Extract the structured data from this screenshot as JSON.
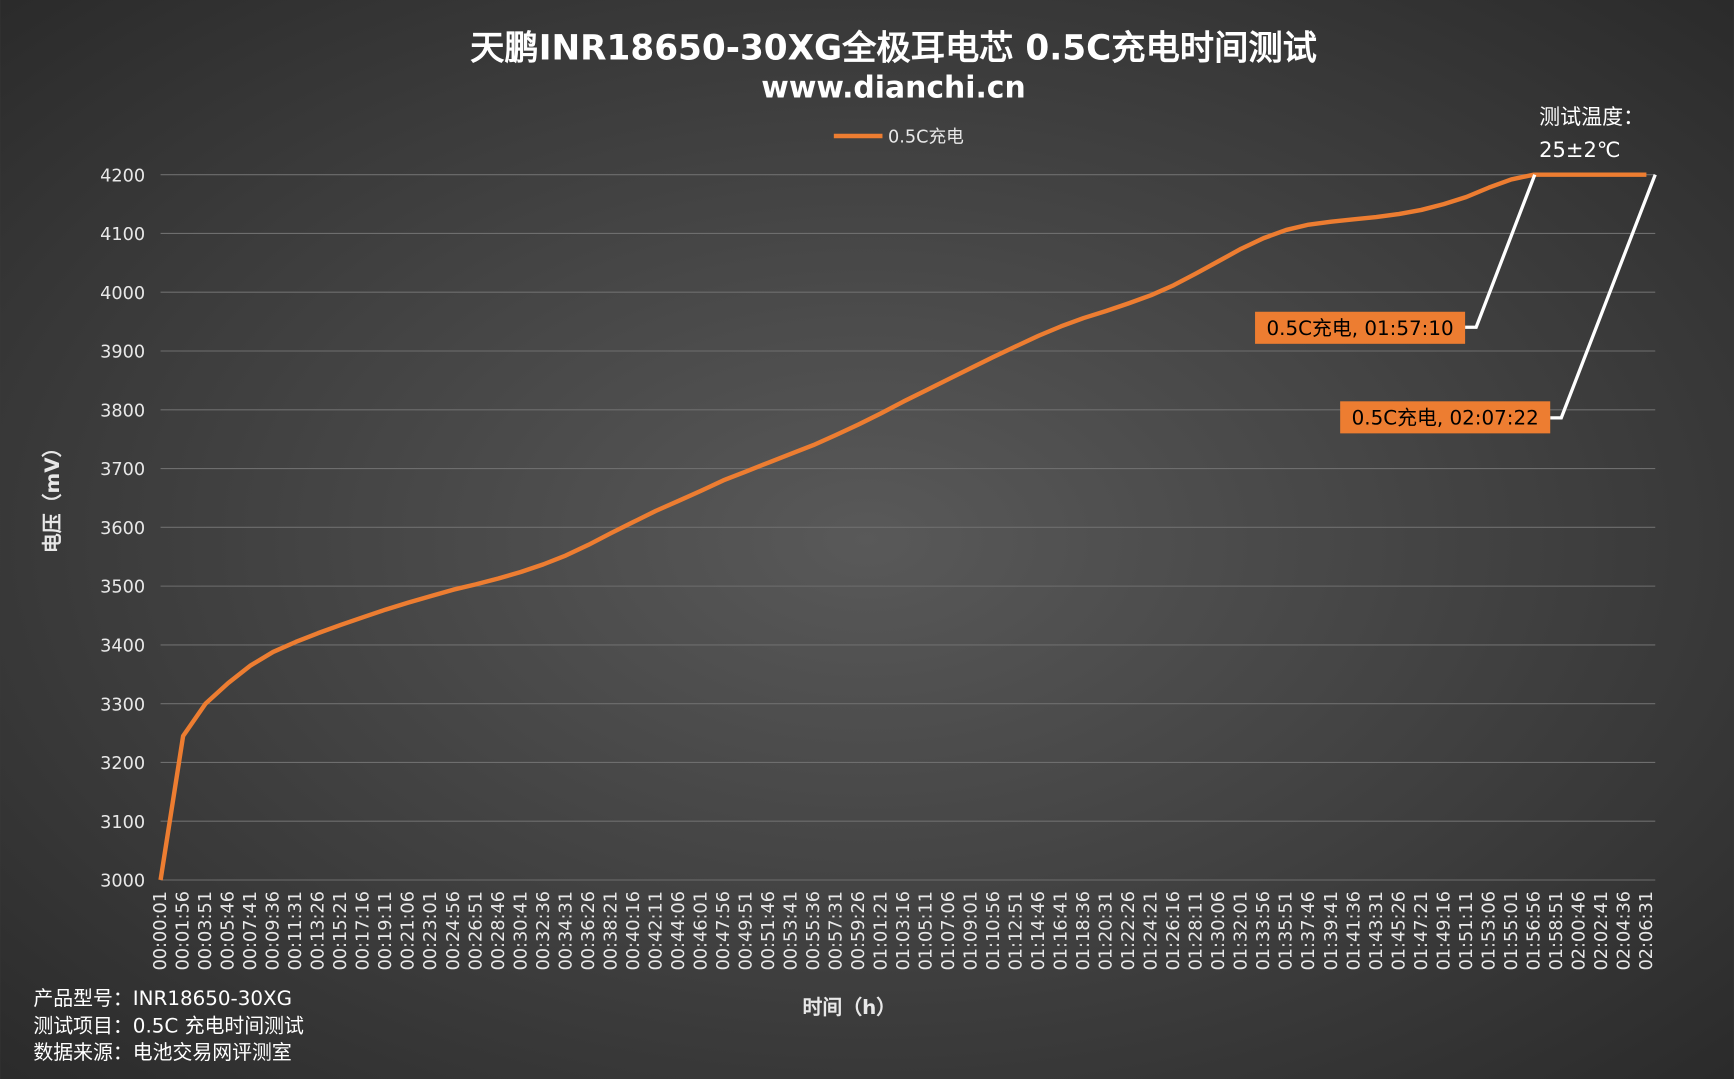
{
  "chart_data": {
    "type": "line",
    "title": "天鹏INR18650-30XG全极耳电芯 0.5C充电时间测试",
    "subtitle": "www.dianchi.cn",
    "y_label": "电压（mV）",
    "x_label": "时间（h）",
    "ylim": [
      3000,
      4200
    ],
    "yticks": [
      3000,
      3100,
      3200,
      3300,
      3400,
      3500,
      3600,
      3700,
      3800,
      3900,
      4000,
      4100,
      4200
    ],
    "grid": true,
    "legend": "top",
    "categories": [
      "00:00:01",
      "00:01:56",
      "00:03:51",
      "00:05:46",
      "00:07:41",
      "00:09:36",
      "00:11:31",
      "00:13:26",
      "00:15:21",
      "00:17:16",
      "00:19:11",
      "00:21:06",
      "00:23:01",
      "00:24:56",
      "00:26:51",
      "00:28:46",
      "00:30:41",
      "00:32:36",
      "00:34:31",
      "00:36:26",
      "00:38:21",
      "00:40:16",
      "00:42:11",
      "00:44:06",
      "00:46:01",
      "00:47:56",
      "00:49:51",
      "00:51:46",
      "00:53:41",
      "00:55:36",
      "00:57:31",
      "00:59:26",
      "01:01:21",
      "01:03:16",
      "01:05:11",
      "01:07:06",
      "01:09:01",
      "01:10:56",
      "01:12:51",
      "01:14:46",
      "01:16:41",
      "01:18:36",
      "01:20:31",
      "01:22:26",
      "01:24:21",
      "01:26:16",
      "01:28:11",
      "01:30:06",
      "01:32:01",
      "01:33:56",
      "01:35:51",
      "01:37:46",
      "01:39:41",
      "01:41:36",
      "01:43:31",
      "01:45:26",
      "01:47:21",
      "01:49:16",
      "01:51:11",
      "01:53:06",
      "01:55:01",
      "01:56:56",
      "01:58:51",
      "02:00:46",
      "02:02:41",
      "02:04:36",
      "02:06:31"
    ],
    "series": [
      {
        "name": "0.5C充电",
        "color": "#ed7d31",
        "values": [
          3000,
          3245,
          3300,
          3335,
          3365,
          3388,
          3405,
          3420,
          3434,
          3447,
          3460,
          3472,
          3483,
          3494,
          3503,
          3513,
          3524,
          3537,
          3552,
          3570,
          3590,
          3609,
          3628,
          3645,
          3662,
          3680,
          3695,
          3710,
          3725,
          3740,
          3757,
          3775,
          3794,
          3814,
          3833,
          3852,
          3871,
          3890,
          3908,
          3926,
          3942,
          3956,
          3968,
          3981,
          3995,
          4012,
          4032,
          4053,
          4074,
          4092,
          4106,
          4115,
          4120,
          4124,
          4128,
          4133,
          4140,
          4150,
          4162,
          4178,
          4192,
          4200,
          4200,
          4200,
          4200,
          4200,
          4200
        ]
      }
    ],
    "annotations": [
      "0.5C充电, 01:57:10",
      "0.5C充电, 02:07:22"
    ],
    "note": [
      "测试温度：",
      "25±2℃"
    ],
    "footer": [
      "产品型号：INR18650-30XG",
      "测试项目：0.5C 充电时间测试",
      "数据来源：电池交易网评测室"
    ]
  }
}
